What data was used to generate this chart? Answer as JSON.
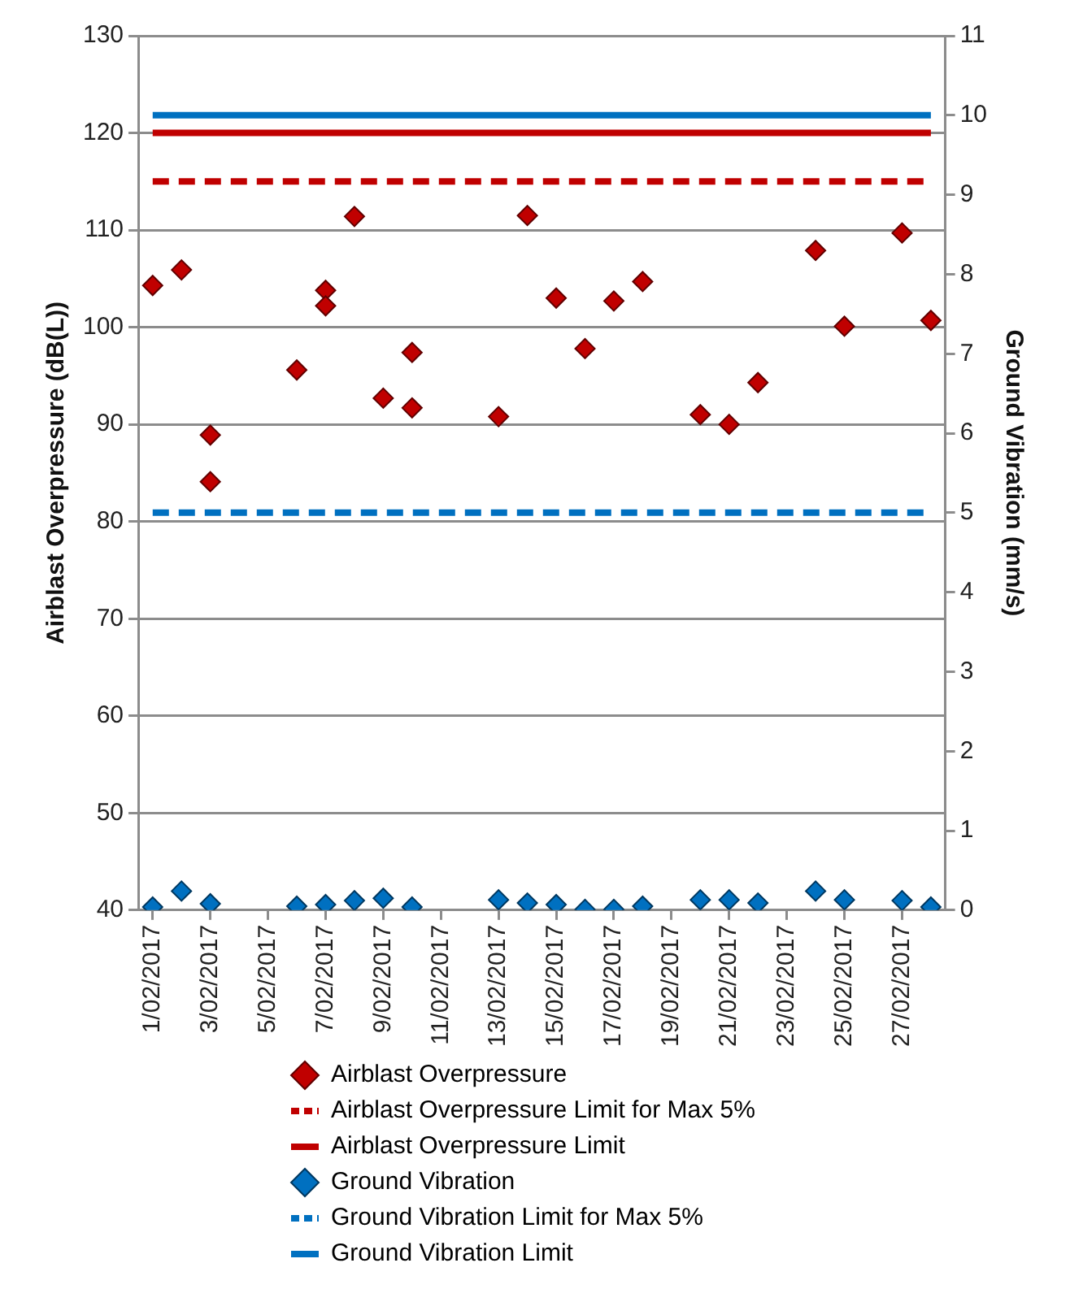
{
  "chart_data": {
    "type": "scatter",
    "ylabel": "Airblast Overpressure (dB(L))",
    "y2label": "Ground Vibration (mm/s)",
    "xlim": [
      "2017-01-31T12:00",
      "2017-02-28T12:00"
    ],
    "xticks": [
      {
        "value": "2017-02-01",
        "label": "1/02/2017"
      },
      {
        "value": "2017-02-03",
        "label": "3/02/2017"
      },
      {
        "value": "2017-02-05",
        "label": "5/02/2017"
      },
      {
        "value": "2017-02-07",
        "label": "7/02/2017"
      },
      {
        "value": "2017-02-09",
        "label": "9/02/2017"
      },
      {
        "value": "2017-02-11",
        "label": "11/02/2017"
      },
      {
        "value": "2017-02-13",
        "label": "13/02/2017"
      },
      {
        "value": "2017-02-15",
        "label": "15/02/2017"
      },
      {
        "value": "2017-02-17",
        "label": "17/02/2017"
      },
      {
        "value": "2017-02-19",
        "label": "19/02/2017"
      },
      {
        "value": "2017-02-21",
        "label": "21/02/2017"
      },
      {
        "value": "2017-02-23",
        "label": "23/02/2017"
      },
      {
        "value": "2017-02-25",
        "label": "25/02/2017"
      },
      {
        "value": "2017-02-27",
        "label": "27/02/2017"
      }
    ],
    "ylim": [
      40,
      130
    ],
    "yticks": [
      40,
      50,
      60,
      70,
      80,
      90,
      100,
      110,
      120,
      130
    ],
    "y2lim": [
      0,
      11
    ],
    "y2ticks": [
      0,
      1,
      2,
      3,
      4,
      5,
      6,
      7,
      8,
      9,
      10,
      11
    ],
    "grid": "y",
    "legend": "bottom",
    "series": [
      {
        "name": "Airblast Overpressure",
        "type": "scatter",
        "marker": "diamond",
        "color": "#c00000",
        "x": [
          "2017-02-01",
          "2017-02-02",
          "2017-02-03",
          "2017-02-03",
          "2017-02-06",
          "2017-02-07",
          "2017-02-07",
          "2017-02-08",
          "2017-02-09",
          "2017-02-10",
          "2017-02-10",
          "2017-02-13",
          "2017-02-14",
          "2017-02-15",
          "2017-02-16",
          "2017-02-17",
          "2017-02-18",
          "2017-02-20",
          "2017-02-21",
          "2017-02-22",
          "2017-02-24",
          "2017-02-25",
          "2017-02-27",
          "2017-02-28"
        ],
        "values": [
          104.3,
          105.9,
          88.9,
          84.1,
          95.6,
          103.8,
          102.2,
          111.4,
          92.7,
          97.4,
          91.7,
          90.8,
          111.5,
          103.0,
          97.8,
          102.7,
          104.7,
          91.0,
          90.0,
          94.3,
          107.9,
          100.1,
          109.7,
          100.7
        ]
      },
      {
        "name": "Airblast Overpressure Limit for Max 5%",
        "type": "line",
        "line_style": "dashed",
        "marker": "none",
        "color": "#c00000",
        "x": [
          "2017-02-01",
          "2017-02-28"
        ],
        "values": [
          115,
          115
        ]
      },
      {
        "name": "Airblast Overpressure Limit",
        "type": "line",
        "line_style": "solid",
        "marker": "none",
        "color": "#c00000",
        "x": [
          "2017-02-01",
          "2017-02-28"
        ],
        "values": [
          120,
          120
        ]
      },
      {
        "name": "Ground Vibration",
        "type": "scatter",
        "marker": "diamond",
        "color": "#0070c0",
        "axis": "y2",
        "x": [
          "2017-02-01",
          "2017-02-02",
          "2017-02-03",
          "2017-02-06",
          "2017-02-07",
          "2017-02-08",
          "2017-02-09",
          "2017-02-10",
          "2017-02-13",
          "2017-02-14",
          "2017-02-15",
          "2017-02-16",
          "2017-02-17",
          "2017-02-18",
          "2017-02-20",
          "2017-02-21",
          "2017-02-22",
          "2017-02-24",
          "2017-02-25",
          "2017-02-27",
          "2017-02-28"
        ],
        "values": [
          0.04,
          0.24,
          0.08,
          0.05,
          0.07,
          0.12,
          0.15,
          0.04,
          0.13,
          0.09,
          0.07,
          0.01,
          0.01,
          0.05,
          0.13,
          0.13,
          0.09,
          0.24,
          0.13,
          0.12,
          0.04
        ]
      },
      {
        "name": "Ground Vibration Limit for Max 5%",
        "type": "line",
        "line_style": "dashed",
        "marker": "none",
        "color": "#0070c0",
        "axis": "y2",
        "x": [
          "2017-02-01",
          "2017-02-28"
        ],
        "values": [
          5,
          5
        ]
      },
      {
        "name": "Ground Vibration Limit",
        "type": "line",
        "line_style": "solid",
        "marker": "none",
        "color": "#0070c0",
        "axis": "y2",
        "x": [
          "2017-02-01",
          "2017-02-28"
        ],
        "values": [
          10,
          10
        ]
      }
    ]
  }
}
